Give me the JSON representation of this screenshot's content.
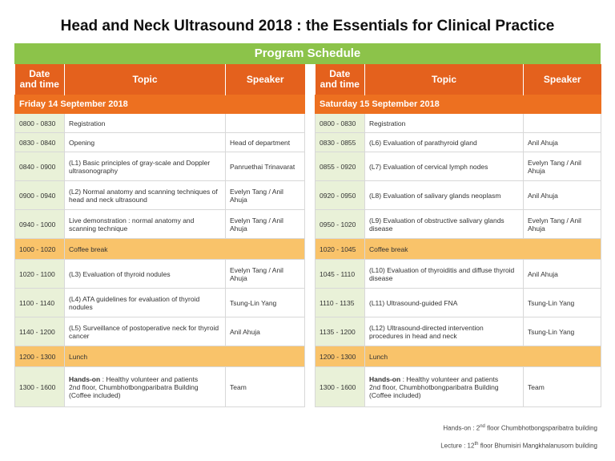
{
  "title": "Head and Neck Ultrasound 2018 : the Essentials for Clinical Practice",
  "banner": "Program Schedule",
  "headers": {
    "datetime_line1": "Date",
    "datetime_line2": "and time",
    "topic": "Topic",
    "speaker": "Speaker"
  },
  "left": {
    "day": "Friday 14 September 2018",
    "rows": [
      {
        "time": "0800 - 0830",
        "topic": "Registration",
        "speaker": ""
      },
      {
        "time": "0830 - 0840",
        "topic": "Opening",
        "speaker": "Head of department"
      },
      {
        "time": "0840 - 0900",
        "topic": "(L1) Basic principles of gray-scale and Doppler ultrasonography",
        "speaker": "Panruethai Trinavarat"
      },
      {
        "time": "0900 - 0940",
        "topic": "(L2) Normal anatomy and scanning techniques of head and neck ultrasound",
        "speaker": "Evelyn Tang / Anil Ahuja"
      },
      {
        "time": "0940 - 1000",
        "topic": "Live demonstration : normal anatomy and scanning technique",
        "speaker": "Evelyn Tang / Anil Ahuja"
      },
      {
        "time": "1000 - 1020",
        "topic": "Coffee break",
        "speaker": ""
      },
      {
        "time": "1020 - 1100",
        "topic": "(L3) Evaluation of thyroid nodules",
        "speaker": "Evelyn Tang / Anil Ahuja"
      },
      {
        "time": "1100 - 1140",
        "topic": "(L4) ATA guidelines for evaluation of thyroid nodules",
        "speaker": "Tsung-Lin Yang"
      },
      {
        "time": "1140 - 1200",
        "topic": "(L5) Surveillance of postoperative neck for thyroid cancer",
        "speaker": "Anil Ahuja"
      },
      {
        "time": "1200 - 1300",
        "topic": "Lunch",
        "speaker": ""
      },
      {
        "time": "1300 - 1600",
        "topic_bold": "Hands-on",
        "topic_rest": " : Healthy volunteer and patients",
        "topic_line2": "2nd floor, Chumbhotbongparibatra Building",
        "topic_line3": "(Coffee included)",
        "speaker": "Team"
      }
    ]
  },
  "right": {
    "day": "Saturday 15 September 2018",
    "rows": [
      {
        "time": "0800 - 0830",
        "topic": "Registration",
        "speaker": ""
      },
      {
        "time": "0830 - 0855",
        "topic": "(L6) Evaluation of parathyroid gland",
        "speaker": "Anil Ahuja"
      },
      {
        "time": "0855 - 0920",
        "topic": "(L7) Evaluation of cervical lymph nodes",
        "speaker": "Evelyn Tang / Anil Ahuja"
      },
      {
        "time": "0920 - 0950",
        "topic": "(L8) Evaluation of salivary glands neoplasm",
        "speaker": "Anil Ahuja"
      },
      {
        "time": "0950 - 1020",
        "topic": "(L9) Evaluation of obstructive salivary glands disease",
        "speaker": "Evelyn Tang / Anil Ahuja"
      },
      {
        "time": "1020 - 1045",
        "topic": "Coffee break",
        "speaker": ""
      },
      {
        "time": "1045 - 1110",
        "topic": "(L10) Evaluation of thyroiditis and diffuse thyroid disease",
        "speaker": "Anil Ahuja"
      },
      {
        "time": "1110 - 1135",
        "topic": "(L11) Ultrasound-guided FNA",
        "speaker": "Tsung-Lin Yang"
      },
      {
        "time": "1135 - 1200",
        "topic": "(L12) Ultrasound-directed intervention procedures in head and neck",
        "speaker": "Tsung-Lin Yang"
      },
      {
        "time": "1200 - 1300",
        "topic": "Lunch",
        "speaker": ""
      },
      {
        "time": "1300 - 1600",
        "topic_bold": "Hands-on",
        "topic_rest": " : Healthy volunteer and patients",
        "topic_line2": "2nd floor, Chumbhotbongparibatra Building",
        "topic_line3": "(Coffee included)",
        "speaker": "Team"
      }
    ]
  },
  "notes": {
    "handson_prefix": "Hands-on : 2",
    "handson_sup": "nd",
    "handson_rest": " floor Chumbhotbongsparibatra building",
    "lecture_prefix": "Lecture : 12",
    "lecture_sup": "th",
    "lecture_rest": " floor Bhumisiri Mangkhalanusorn building"
  }
}
